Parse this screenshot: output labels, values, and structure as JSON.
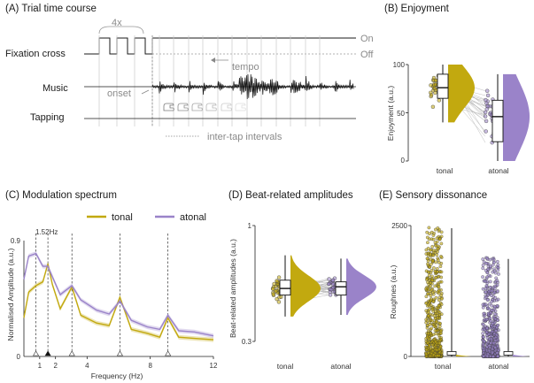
{
  "colors": {
    "tonal": "#c2a90f",
    "atonal": "#9a83c9",
    "ink": "#1a1a1a",
    "grey": "#8a8a8a"
  },
  "panelA": {
    "title": "(A) Trial time course",
    "row_labels": [
      "Fixation cross",
      "Music",
      "Tapping"
    ],
    "state_on": "On",
    "state_off": "Off",
    "repeat_label": "4x",
    "tempo_label": "tempo",
    "onset_label": "onset",
    "iti_label": "inter-tap intervals"
  },
  "panelB": {
    "title": "(B) Enjoyment",
    "chart_data": {
      "type": "raincloud",
      "ylabel": "Enjoyment (a.u.)",
      "ylim": [
        0,
        100
      ],
      "yticks": [
        0,
        50,
        100
      ],
      "categories": [
        "tonal",
        "atonal"
      ],
      "series": [
        {
          "name": "tonal",
          "median": 76,
          "q1": 65,
          "q3": 90,
          "min": 40,
          "max": 100
        },
        {
          "name": "atonal",
          "median": 46,
          "q1": 20,
          "q3": 63,
          "min": 0,
          "max": 90
        }
      ]
    }
  },
  "panelC": {
    "title": "(C) Modulation spectrum",
    "annotation": "1.52Hz",
    "chart_data": {
      "type": "line",
      "xlabel": "Frequency (Hz)",
      "ylabel": "Normalised Amplitude (a.u.)",
      "xlim": [
        0,
        12
      ],
      "ylim": [
        0,
        0.9
      ],
      "xticks": [
        1,
        2,
        4,
        8,
        12
      ],
      "yticks": [
        0,
        0.9
      ],
      "beat_marker_hz": 1.52,
      "harmonic_lines_hz": [
        0.76,
        1.52,
        3.04,
        6.08,
        9.12
      ],
      "series": [
        {
          "name": "tonal",
          "x": [
            0.0,
            0.3,
            0.76,
            1.2,
            1.52,
            1.8,
            2.3,
            3.04,
            3.6,
            4.6,
            5.4,
            6.08,
            6.8,
            7.8,
            8.6,
            9.12,
            9.8,
            10.8,
            12.0
          ],
          "y": [
            0.3,
            0.5,
            0.55,
            0.58,
            0.72,
            0.56,
            0.37,
            0.54,
            0.32,
            0.26,
            0.24,
            0.46,
            0.21,
            0.18,
            0.15,
            0.3,
            0.15,
            0.14,
            0.13
          ]
        },
        {
          "name": "atonal",
          "x": [
            0.0,
            0.3,
            0.76,
            1.2,
            1.52,
            1.8,
            2.3,
            3.04,
            3.6,
            4.6,
            5.4,
            6.08,
            6.8,
            7.8,
            8.6,
            9.12,
            9.8,
            10.8,
            12.0
          ],
          "y": [
            0.6,
            0.78,
            0.8,
            0.7,
            0.7,
            0.62,
            0.48,
            0.55,
            0.44,
            0.36,
            0.33,
            0.43,
            0.28,
            0.23,
            0.21,
            0.32,
            0.2,
            0.19,
            0.16
          ]
        }
      ]
    }
  },
  "panelD": {
    "title": "(D) Beat-related amplitudes",
    "chart_data": {
      "type": "raincloud",
      "ylabel": "Beat-related amplitudes (a.u.)",
      "ylim": [
        0.3,
        1
      ],
      "yticks": [
        0.3,
        1
      ],
      "categories": [
        "tonal",
        "atonal"
      ],
      "series": [
        {
          "name": "tonal",
          "median": 0.62,
          "q1": 0.58,
          "q3": 0.67,
          "min": 0.45,
          "max": 0.82
        },
        {
          "name": "atonal",
          "median": 0.63,
          "q1": 0.58,
          "q3": 0.66,
          "min": 0.46,
          "max": 0.8
        }
      ]
    }
  },
  "panelE": {
    "title": "(E) Sensory dissonance",
    "chart_data": {
      "type": "raincloud",
      "ylabel": "Roughnes (a.u.)",
      "ylim": [
        0,
        2500
      ],
      "yticks": [
        0,
        2500
      ],
      "categories": [
        "tonal",
        "atonal"
      ],
      "series": [
        {
          "name": "tonal",
          "median": 20,
          "q1": 0,
          "q3": 60,
          "max": 2500
        },
        {
          "name": "atonal",
          "median": 20,
          "q1": 0,
          "q3": 60,
          "max": 1900
        }
      ]
    }
  }
}
